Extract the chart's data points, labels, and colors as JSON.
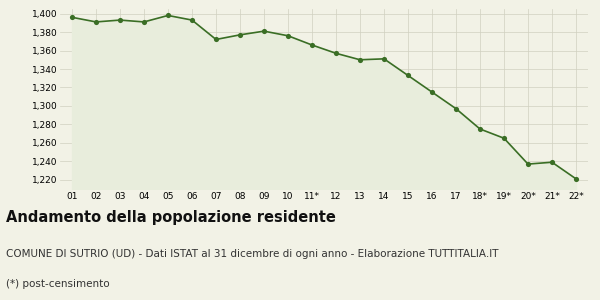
{
  "x_labels": [
    "01",
    "02",
    "03",
    "04",
    "05",
    "06",
    "07",
    "08",
    "09",
    "10",
    "11*",
    "12",
    "13",
    "14",
    "15",
    "16",
    "17",
    "18*",
    "19*",
    "20*",
    "21*",
    "22*"
  ],
  "y_values": [
    1396,
    1391,
    1393,
    1391,
    1398,
    1393,
    1372,
    1377,
    1381,
    1376,
    1366,
    1357,
    1350,
    1351,
    1333,
    1315,
    1297,
    1275,
    1265,
    1237,
    1239,
    1221
  ],
  "ylim": [
    1210,
    1405
  ],
  "yticks": [
    1220,
    1240,
    1260,
    1280,
    1300,
    1320,
    1340,
    1360,
    1380,
    1400
  ],
  "line_color": "#3a6e25",
  "fill_color": "#e8eddc",
  "marker_color": "#3a6e25",
  "grid_color": "#d0d0c0",
  "background_color": "#f2f2e6",
  "title": "Andamento della popolazione residente",
  "subtitle": "COMUNE DI SUTRIO (UD) - Dati ISTAT al 31 dicembre di ogni anno - Elaborazione TUTTITALIA.IT",
  "footnote": "(*) post-censimento",
  "title_fontsize": 10.5,
  "subtitle_fontsize": 7.5,
  "footnote_fontsize": 7.5
}
